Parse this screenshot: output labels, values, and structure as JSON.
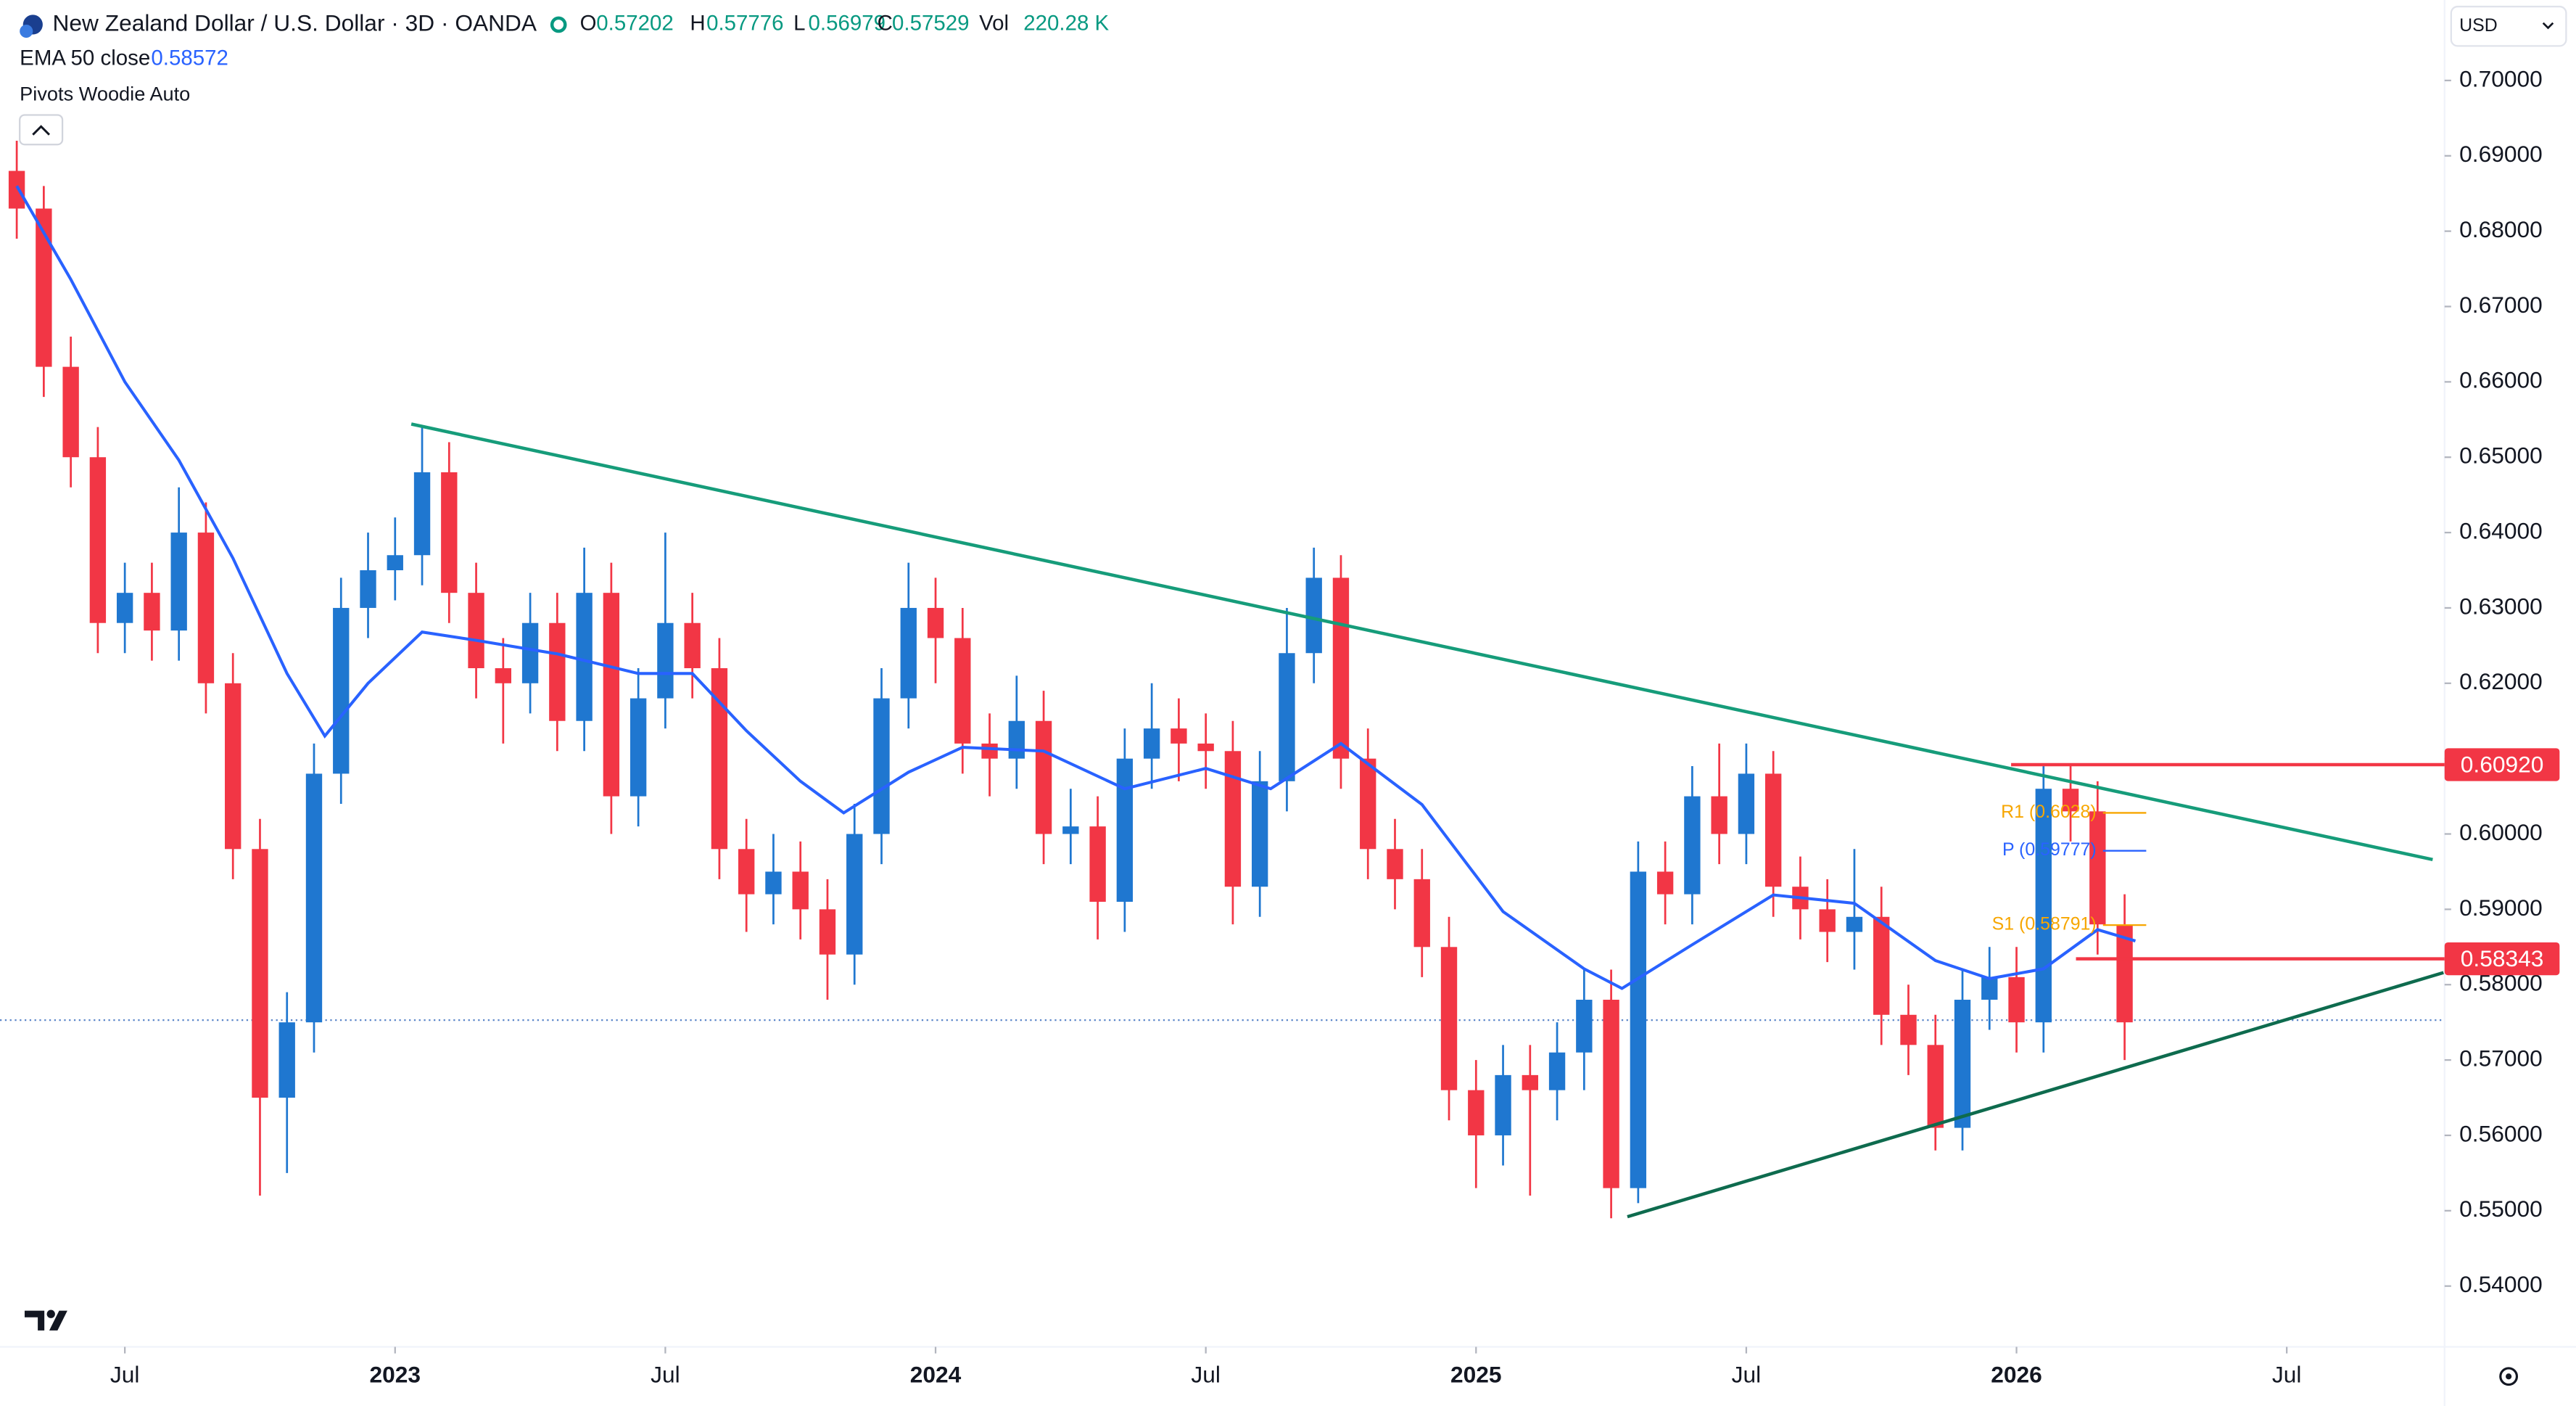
{
  "chart_data": {
    "type": "candlestick",
    "title": "New Zealand Dollar / U.S. Dollar · 3D · OANDA",
    "last_bar": [
      {
        "label": "O",
        "value": 0.57202
      },
      {
        "label": "H",
        "value": 0.57776
      },
      {
        "label": "L",
        "value": 0.56979
      },
      {
        "label": "C",
        "value": 0.57529
      },
      {
        "label": "Vol",
        "value": "220.28 K"
      }
    ],
    "indicators": [
      {
        "name": "EMA 50 close",
        "value": 0.58572,
        "color": "#2962ff"
      },
      {
        "name": "Pivots Woodie Auto"
      }
    ],
    "currency": "USD",
    "up_color": "#1f77d0",
    "down_color": "#f23645",
    "x": [
      2022.3,
      2022.35,
      2022.4,
      2022.45,
      2022.5,
      2022.55,
      2022.6,
      2022.65,
      2022.7,
      2022.75,
      2022.8,
      2022.85,
      2022.9,
      2022.95,
      2023.0,
      2023.05,
      2023.1,
      2023.15,
      2023.2,
      2023.25,
      2023.3,
      2023.35,
      2023.4,
      2023.45,
      2023.5,
      2023.55,
      2023.6,
      2023.65,
      2023.7,
      2023.75,
      2023.8,
      2023.85,
      2023.9,
      2023.95,
      2024.0,
      2024.05,
      2024.1,
      2024.15,
      2024.2,
      2024.25,
      2024.3,
      2024.35,
      2024.4,
      2024.45,
      2024.5,
      2024.55,
      2024.6,
      2024.65,
      2024.7,
      2024.75,
      2024.8,
      2024.85,
      2024.9,
      2024.95,
      2025.0,
      2025.05,
      2025.1,
      2025.15,
      2025.2,
      2025.25,
      2025.3,
      2025.35,
      2025.4,
      2025.45,
      2025.5,
      2025.55,
      2025.6,
      2025.65,
      2025.7,
      2025.75,
      2025.8,
      2025.85,
      2025.9,
      2025.95,
      2026.0,
      2026.05,
      2026.1,
      2026.15,
      2026.2
    ],
    "open": [
      0.688,
      0.683,
      0.662,
      0.65,
      0.628,
      0.632,
      0.627,
      0.64,
      0.62,
      0.598,
      0.565,
      0.575,
      0.608,
      0.63,
      0.635,
      0.637,
      0.648,
      0.632,
      0.622,
      0.62,
      0.628,
      0.615,
      0.632,
      0.605,
      0.618,
      0.628,
      0.622,
      0.598,
      0.592,
      0.595,
      0.59,
      0.584,
      0.6,
      0.618,
      0.63,
      0.626,
      0.612,
      0.61,
      0.615,
      0.6,
      0.601,
      0.591,
      0.61,
      0.614,
      0.612,
      0.611,
      0.593,
      0.607,
      0.624,
      0.634,
      0.61,
      0.598,
      0.594,
      0.585,
      0.566,
      0.56,
      0.568,
      0.566,
      0.571,
      0.578,
      0.553,
      0.595,
      0.592,
      0.605,
      0.6,
      0.608,
      0.593,
      0.59,
      0.587,
      0.589,
      0.576,
      0.572,
      0.561,
      0.578,
      0.581,
      0.575,
      0.606,
      0.603,
      0.588
    ],
    "high": [
      0.692,
      0.686,
      0.666,
      0.654,
      0.636,
      0.636,
      0.646,
      0.644,
      0.624,
      0.602,
      0.579,
      0.612,
      0.634,
      0.64,
      0.642,
      0.654,
      0.652,
      0.636,
      0.626,
      0.632,
      0.632,
      0.638,
      0.636,
      0.622,
      0.64,
      0.632,
      0.626,
      0.602,
      0.6,
      0.599,
      0.594,
      0.604,
      0.622,
      0.636,
      0.634,
      0.63,
      0.616,
      0.621,
      0.619,
      0.606,
      0.605,
      0.614,
      0.62,
      0.618,
      0.616,
      0.615,
      0.611,
      0.63,
      0.638,
      0.637,
      0.614,
      0.602,
      0.598,
      0.589,
      0.57,
      0.572,
      0.572,
      0.575,
      0.582,
      0.582,
      0.599,
      0.599,
      0.609,
      0.612,
      0.612,
      0.611,
      0.597,
      0.594,
      0.598,
      0.593,
      0.58,
      0.576,
      0.582,
      0.585,
      0.585,
      0.609,
      0.609,
      0.607,
      0.592
    ],
    "low": [
      0.679,
      0.658,
      0.646,
      0.624,
      0.624,
      0.623,
      0.623,
      0.616,
      0.594,
      0.552,
      0.555,
      0.571,
      0.604,
      0.626,
      0.631,
      0.633,
      0.628,
      0.618,
      0.612,
      0.616,
      0.611,
      0.611,
      0.6,
      0.601,
      0.614,
      0.618,
      0.594,
      0.587,
      0.588,
      0.586,
      0.578,
      0.58,
      0.596,
      0.614,
      0.62,
      0.608,
      0.605,
      0.606,
      0.596,
      0.596,
      0.586,
      0.587,
      0.606,
      0.607,
      0.606,
      0.588,
      0.589,
      0.603,
      0.62,
      0.606,
      0.594,
      0.59,
      0.581,
      0.562,
      0.553,
      0.556,
      0.552,
      0.562,
      0.566,
      0.549,
      0.551,
      0.588,
      0.588,
      0.596,
      0.596,
      0.589,
      0.586,
      0.583,
      0.582,
      0.572,
      0.568,
      0.558,
      0.558,
      0.574,
      0.571,
      0.571,
      0.599,
      0.584,
      0.57
    ],
    "close": [
      0.683,
      0.662,
      0.65,
      0.628,
      0.632,
      0.627,
      0.64,
      0.62,
      0.598,
      0.565,
      0.575,
      0.608,
      0.63,
      0.635,
      0.637,
      0.648,
      0.632,
      0.622,
      0.62,
      0.628,
      0.615,
      0.632,
      0.605,
      0.618,
      0.628,
      0.622,
      0.598,
      0.592,
      0.595,
      0.59,
      0.584,
      0.6,
      0.618,
      0.63,
      0.626,
      0.612,
      0.61,
      0.615,
      0.6,
      0.601,
      0.591,
      0.61,
      0.614,
      0.612,
      0.611,
      0.593,
      0.607,
      0.624,
      0.634,
      0.61,
      0.598,
      0.594,
      0.585,
      0.566,
      0.56,
      0.568,
      0.566,
      0.571,
      0.578,
      0.553,
      0.595,
      0.592,
      0.605,
      0.6,
      0.608,
      0.593,
      0.59,
      0.587,
      0.589,
      0.576,
      0.572,
      0.561,
      0.578,
      0.581,
      0.575,
      0.606,
      0.603,
      0.588,
      0.575
    ],
    "ema": {
      "color": "#2962ff",
      "x": [
        2022.3,
        2022.4,
        2022.5,
        2022.6,
        2022.7,
        2022.8,
        2022.87,
        2022.95,
        2023.05,
        2023.15,
        2023.3,
        2023.45,
        2023.55,
        2023.65,
        2023.75,
        2023.83,
        2023.95,
        2024.05,
        2024.2,
        2024.35,
        2024.5,
        2024.62,
        2024.75,
        2024.9,
        2025.05,
        2025.2,
        2025.27,
        2025.4,
        2025.55,
        2025.7,
        2025.85,
        2025.95,
        2026.05,
        2026.15,
        2026.22
      ],
      "values": [
        0.686,
        0.6736,
        0.66,
        0.6496,
        0.6366,
        0.6213,
        0.613,
        0.62,
        0.6268,
        0.6257,
        0.6239,
        0.6213,
        0.6213,
        0.6137,
        0.607,
        0.6028,
        0.6082,
        0.6115,
        0.611,
        0.606,
        0.6087,
        0.606,
        0.612,
        0.6039,
        0.5897,
        0.5821,
        0.5795,
        0.5853,
        0.5919,
        0.5908,
        0.5832,
        0.5808,
        0.5821,
        0.5873,
        0.5858
      ]
    },
    "trendlines": [
      {
        "color": "#169c7a",
        "x": [
          2023.03,
          2026.77
        ],
        "values": [
          0.6544,
          0.5966
        ]
      },
      {
        "color": "#0e6b4e",
        "x": [
          2025.28,
          2026.79
        ],
        "values": [
          0.5492,
          0.5816
        ]
      }
    ],
    "price_lines": [
      {
        "value": 0.6092,
        "label": "0.60920",
        "x": 2025.99,
        "color": "#f23645"
      },
      {
        "value": 0.58343,
        "label": "0.58343",
        "x": 2026.11,
        "color": "#f23645"
      }
    ],
    "pivots": [
      {
        "label": "R1 (0.6028)",
        "value": 0.6028,
        "color": "#f7a600"
      },
      {
        "label": "P (0.59777)",
        "value": 0.59777,
        "color": "#2962ff"
      },
      {
        "label": "S1 (0.58791)",
        "value": 0.58791,
        "color": "#f7a600"
      }
    ],
    "pivot_x": [
      2026.16,
      2026.24
    ],
    "xlim": [
      2022.269,
      2026.792
    ],
    "xticks": [
      {
        "value": 2022.5,
        "label": "Jul"
      },
      2023,
      {
        "value": 2023.5,
        "label": "Jul"
      },
      2024,
      {
        "value": 2024.5,
        "label": "Jul"
      },
      2025,
      {
        "value": 2025.5,
        "label": "Jul"
      },
      2026,
      {
        "value": 2026.5,
        "label": "Jul"
      }
    ],
    "ylim": [
      0.53193,
      0.71068
    ],
    "yticks": [
      {
        "value": 0.7,
        "label": "0.70000"
      },
      {
        "value": 0.69,
        "label": "0.69000"
      },
      {
        "value": 0.68,
        "label": "0.68000"
      },
      {
        "value": 0.67,
        "label": "0.67000"
      },
      {
        "value": 0.66,
        "label": "0.66000"
      },
      {
        "value": 0.65,
        "label": "0.65000"
      },
      {
        "value": 0.64,
        "label": "0.64000"
      },
      {
        "value": 0.63,
        "label": "0.63000"
      },
      {
        "value": 0.62,
        "label": "0.62000"
      },
      {
        "value": 0.61,
        "label": "0.61000"
      },
      {
        "value": 0.6,
        "label": "0.60000"
      },
      {
        "value": 0.59,
        "label": "0.59000"
      },
      {
        "value": 0.58,
        "label": "0.58000"
      },
      {
        "value": 0.57,
        "label": "0.57000"
      },
      {
        "value": 0.56,
        "label": "0.56000"
      },
      {
        "value": 0.55,
        "label": "0.55000"
      },
      {
        "value": 0.54,
        "label": "0.54000"
      }
    ],
    "grid": false
  }
}
